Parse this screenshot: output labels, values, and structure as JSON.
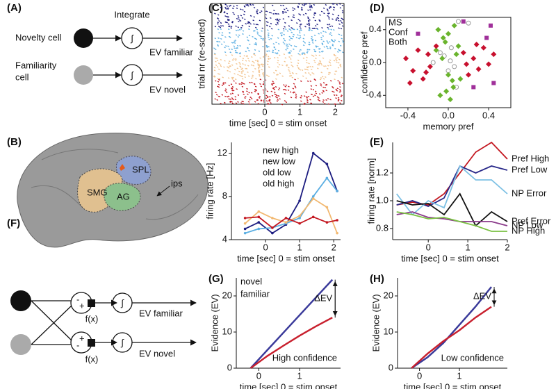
{
  "panel_labels": [
    "(A)",
    "(B)",
    "(C)",
    "(D)",
    "(E)",
    "(F)",
    "(G)",
    "(H)"
  ],
  "diagram_a": {
    "integrate": "Integrate",
    "novelty": "Novelty cell",
    "familiarity": [
      "Familiarity",
      "cell"
    ],
    "ev_familiar": "EV familiar",
    "ev_novel": "EV novel"
  },
  "brain": {
    "spl": "SPL",
    "smg": "SMG",
    "ag": "AG",
    "ips": "ips"
  },
  "diagram_f": {
    "f1": "f(x)",
    "f2": "f(x)",
    "ev_familiar": "EV familiar",
    "ev_novel": "EV novel",
    "minus": "-",
    "plus": "+"
  },
  "chart_data": [
    {
      "type": "raster",
      "ylabel": "trial nr (re-sorted)",
      "xlabel": "time [sec] 0 = stim onset",
      "xlim": [
        -1.5,
        2.25
      ],
      "xticks": [
        0,
        1,
        2
      ],
      "colors": [
        "#1c1c80",
        "#5aaee2",
        "#f2c28c",
        "#c3161f"
      ]
    },
    {
      "type": "line",
      "ylabel": "firing rate [Hz]",
      "xlabel": "time [sec] 0 = stim onset",
      "xlim": [
        -1,
        2.2
      ],
      "ylim": [
        4,
        13
      ],
      "xticks": [
        0,
        1,
        2
      ],
      "yticks": [
        4,
        8,
        12
      ],
      "markers": true,
      "legend": "top",
      "x": [
        -0.6,
        -0.2,
        0.2,
        0.6,
        1.0,
        1.4,
        1.8,
        2.1
      ],
      "series": [
        {
          "name": "new high",
          "color": "#1c1c80",
          "values": [
            5.0,
            5.6,
            4.6,
            5.4,
            7.6,
            12.0,
            11.0,
            8.5
          ]
        },
        {
          "name": "new low",
          "color": "#5aaee2",
          "values": [
            4.6,
            5.0,
            5.1,
            5.5,
            6.0,
            8.0,
            9.7,
            8.5
          ]
        },
        {
          "name": "old low",
          "color": "#f2b870",
          "values": [
            5.5,
            6.6,
            6.0,
            5.6,
            6.2,
            7.8,
            7.0,
            4.6
          ]
        },
        {
          "name": "old high",
          "color": "#c3161f",
          "values": [
            6.0,
            6.1,
            5.1,
            6.0,
            5.5,
            6.1,
            5.6,
            5.8
          ]
        }
      ]
    },
    {
      "type": "scatter",
      "ylabel": "confidence pref",
      "xlabel": "memory pref",
      "xlim": [
        -0.62,
        0.62
      ],
      "ylim": [
        -0.55,
        0.55
      ],
      "xticks": [
        -0.4,
        {
          "value": 0,
          "label": "0.0"
        },
        0.4
      ],
      "yticks": [
        0.4,
        {
          "value": 0,
          "label": "0.0"
        },
        -0.4
      ],
      "legend": "top-left",
      "series": [
        {
          "name": "MS",
          "color": "#c8102e",
          "marker": "diamond",
          "x": [
            -0.42,
            -0.35,
            -0.3,
            -0.25,
            -0.2,
            -0.18,
            -0.12,
            0.15,
            0.2,
            0.25,
            0.3,
            0.35,
            0.4,
            0.45,
            -0.38,
            0.28,
            -0.22,
            0.18
          ],
          "values": [
            0.05,
            -0.1,
            0.15,
            -0.2,
            0.1,
            -0.05,
            0.2,
            0.12,
            -0.15,
            0.05,
            -0.08,
            0.18,
            -0.02,
            0.1,
            -0.25,
            0.22,
            -0.12,
            -0.02
          ]
        },
        {
          "name": "Conf",
          "color": "#6ab42d",
          "marker": "diamond",
          "x": [
            -0.1,
            -0.05,
            0,
            0.05,
            0.1,
            -0.08,
            0.02,
            0.08,
            -0.03,
            0.12,
            0.0,
            -0.12,
            0.06,
            -0.02,
            0.04,
            -0.06
          ],
          "values": [
            0.4,
            0.3,
            0.35,
            -0.3,
            0.2,
            -0.4,
            -0.45,
            0.1,
            0.25,
            -0.2,
            -0.15,
            0.15,
            0.45,
            -0.35,
            -0.22,
            0.05
          ]
        },
        {
          "name": "Both",
          "color": "#a0309a",
          "marker": "square",
          "x": [
            0.15,
            0.42,
            0.45,
            -0.3,
            0.25,
            0.38
          ],
          "values": [
            0.5,
            0.45,
            -0.25,
            0.35,
            -0.3,
            0.3
          ]
        },
        {
          "color": "#999999",
          "marker": "circle",
          "x": [
            0.02,
            -0.04,
            0.06,
            0.1,
            0.2,
            -0.15,
            0.0,
            0.08,
            -0.08,
            0.03
          ],
          "values": [
            0.02,
            0.08,
            -0.05,
            0.5,
            0.48,
            0.0,
            -0.1,
            -0.3,
            0.12,
            0.18
          ]
        }
      ]
    },
    {
      "type": "line",
      "ylabel": "firing rate [norm]",
      "xlabel": "time [sec] 0 = stim onset",
      "xlim": [
        -0.9,
        2
      ],
      "ylim": [
        0.72,
        1.42
      ],
      "xticks": [
        0,
        1,
        2
      ],
      "yticks": [
        0.8,
        {
          "value": 1,
          "label": "1.0"
        },
        1.2
      ],
      "legend": "right",
      "x": [
        -0.8,
        -0.4,
        0,
        0.4,
        0.8,
        1.2,
        1.6,
        2
      ],
      "series": [
        {
          "name": "Pref High",
          "color": "#c3161f",
          "values": [
            0.97,
            0.99,
            0.97,
            1.05,
            1.2,
            1.35,
            1.42,
            1.3
          ]
        },
        {
          "name": "Pref Low",
          "color": "#2a2a8a",
          "values": [
            0.97,
            1.0,
            0.96,
            1.02,
            1.25,
            1.2,
            1.25,
            1.22
          ]
        },
        {
          "name": "NP Error",
          "color": "#7cc0e4",
          "values": [
            1.05,
            0.9,
            1.0,
            0.95,
            1.25,
            1.15,
            1.15,
            1.05
          ]
        },
        {
          "name": "Pref Error",
          "color": "#111111",
          "values": [
            1.0,
            0.97,
            0.98,
            0.9,
            1.05,
            0.82,
            0.92,
            0.85
          ]
        },
        {
          "name": "NP Low",
          "color": "#8a3a8a",
          "values": [
            0.9,
            0.92,
            0.88,
            0.87,
            0.85,
            0.85,
            0.85,
            0.82
          ]
        },
        {
          "name": "NP High",
          "color": "#7ac143",
          "values": [
            0.92,
            0.9,
            0.87,
            0.88,
            0.85,
            0.82,
            0.78,
            0.78
          ]
        }
      ]
    },
    {
      "type": "line",
      "ylabel": "Evidence (EV)",
      "xlabel": "time [sec] 0 = stim onset",
      "xlim": [
        -0.55,
        2.0
      ],
      "ylim": [
        0,
        25
      ],
      "xticks": [
        0,
        1
      ],
      "yticks": [
        0,
        10,
        20
      ],
      "legend": "top-left",
      "delta_label": "ΔEV",
      "note": "High confidence",
      "x": [
        -0.2,
        0.2,
        0.6,
        1.0,
        1.4,
        1.8
      ],
      "series": [
        {
          "name": "novel",
          "color": "#3a3a9a",
          "values": [
            0,
            4.9,
            9.8,
            14.7,
            19.6,
            24.5
          ]
        },
        {
          "name": "familiar",
          "color": "#c8202e",
          "values": [
            0,
            3.3,
            6.2,
            9,
            11.6,
            14
          ]
        }
      ]
    },
    {
      "type": "line",
      "ylabel": "Evidence (EV)",
      "xlabel": "time [sec] 0 = stim onset",
      "xlim": [
        -0.55,
        2.2
      ],
      "ylim": [
        0,
        25
      ],
      "xticks": [
        0,
        1
      ],
      "yticks": [
        0,
        10,
        20
      ],
      "delta_label": "ΔEV",
      "note": "Low confidence",
      "x": [
        -0.2,
        0.2,
        0.6,
        1.0,
        1.4,
        1.8
      ],
      "series": [
        {
          "color": "#3a3a9a",
          "values": [
            0,
            3,
            7,
            12,
            17,
            22.5
          ]
        },
        {
          "color": "#c8202e",
          "values": [
            0,
            4,
            7.5,
            10.5,
            14,
            17
          ]
        }
      ]
    }
  ]
}
